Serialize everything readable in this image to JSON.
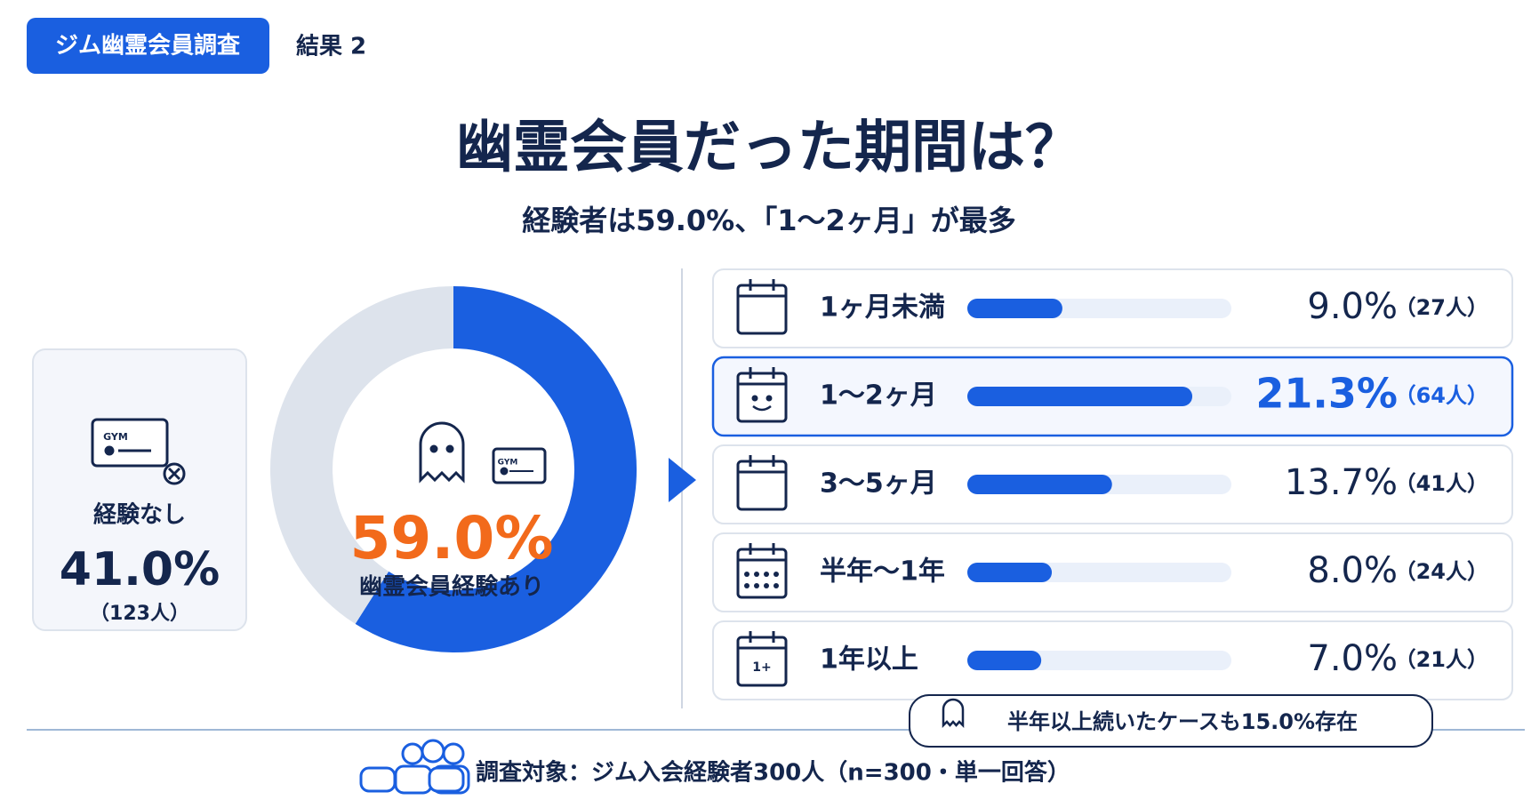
{
  "header": {
    "tag": "ジム幽霊会員調査",
    "label": "結果 2"
  },
  "title": "幽霊会員だった期間は？",
  "subtitle": "経験者は59.0%、「1〜2ヶ月」が最多",
  "icon_labels": {
    "card": "GYM",
    "calendar": "1+"
  },
  "chart_data": [
    {
      "type": "pie",
      "categories": [
        "幽霊会員経験あり",
        "経験なし"
      ],
      "values": [
        59.0,
        41.0
      ],
      "value_labels": [
        "59.0%",
        "41.0%"
      ],
      "count_labels": [
        null,
        "（123人）"
      ],
      "colors": [
        "#1a5fe0",
        "#dde3ec"
      ]
    },
    {
      "type": "bar",
      "categories": [
        "1ヶ月未満",
        "1〜2ヶ月",
        "3〜5ヶ月",
        "半年〜1年",
        "1年以上"
      ],
      "values": [
        9.0,
        21.3,
        13.7,
        8.0,
        7.0
      ],
      "value_labels": [
        "9.0%",
        "21.3%",
        "13.7%",
        "8.0%",
        "7.0%"
      ],
      "count_labels": [
        "（27人）",
        "（64人）",
        "（41人）",
        "（24人）",
        "（21人）"
      ],
      "xlim": [
        0,
        25
      ],
      "color": "#1a5fe0",
      "highlight": 1,
      "callout": "半年以上続いたケースも15.0%存在"
    }
  ],
  "footer": "調査対象：ジム入会経験者300人（n=300・単一回答）"
}
